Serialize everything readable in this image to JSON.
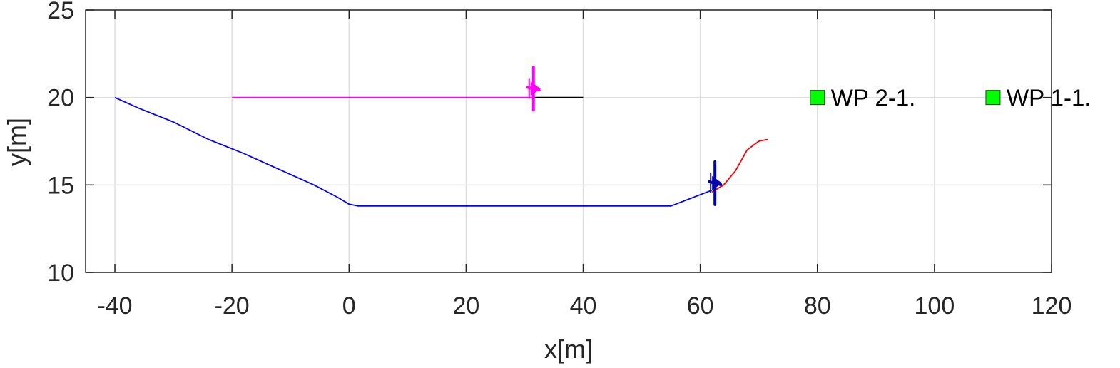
{
  "chart_data": {
    "type": "line",
    "xlabel": "x[m]",
    "ylabel": "y[m]",
    "xlim": [
      -45,
      120
    ],
    "ylim": [
      10,
      25
    ],
    "xticks": [
      -40,
      -20,
      0,
      20,
      40,
      60,
      80,
      100,
      120
    ],
    "yticks": [
      10,
      15,
      20,
      25
    ],
    "grid": true,
    "series": [
      {
        "color": "#0000ff",
        "points": [
          [
            -40,
            20.0
          ],
          [
            -36,
            19.4
          ],
          [
            -30,
            18.6
          ],
          [
            -24,
            17.6
          ],
          [
            -18,
            16.8
          ],
          [
            -12,
            15.9
          ],
          [
            -6,
            15.0
          ],
          [
            -2,
            14.3
          ],
          [
            0,
            13.9
          ],
          [
            1.5,
            13.8
          ],
          [
            55,
            13.8
          ],
          [
            62,
            14.7
          ]
        ]
      },
      {
        "color": "#ff0000",
        "points": [
          [
            62,
            14.6
          ],
          [
            64,
            15.0
          ],
          [
            66,
            15.8
          ],
          [
            68,
            17.0
          ],
          [
            70,
            17.5
          ],
          [
            71.5,
            17.6
          ]
        ]
      },
      {
        "color": "#ff00ff",
        "points": [
          [
            -20,
            20.0
          ],
          [
            31.5,
            20.0
          ]
        ]
      },
      {
        "color": "#000000",
        "points": [
          [
            31.5,
            20.0
          ],
          [
            40,
            20.0
          ]
        ]
      }
    ],
    "vehicles": [
      {
        "color": "#ff00ff",
        "x": 31.5,
        "y": 20.5,
        "icon": "airplane-icon"
      },
      {
        "color": "#0000aa",
        "x": 62.5,
        "y": 15.1,
        "icon": "airplane-icon"
      }
    ],
    "waypoints": [
      {
        "label": "WP 2-1.",
        "x": 80,
        "y": 20.0,
        "color": "#00ff00"
      },
      {
        "label": "WP 1-1.",
        "x": 110,
        "y": 20.0,
        "color": "#00ff00"
      }
    ]
  }
}
